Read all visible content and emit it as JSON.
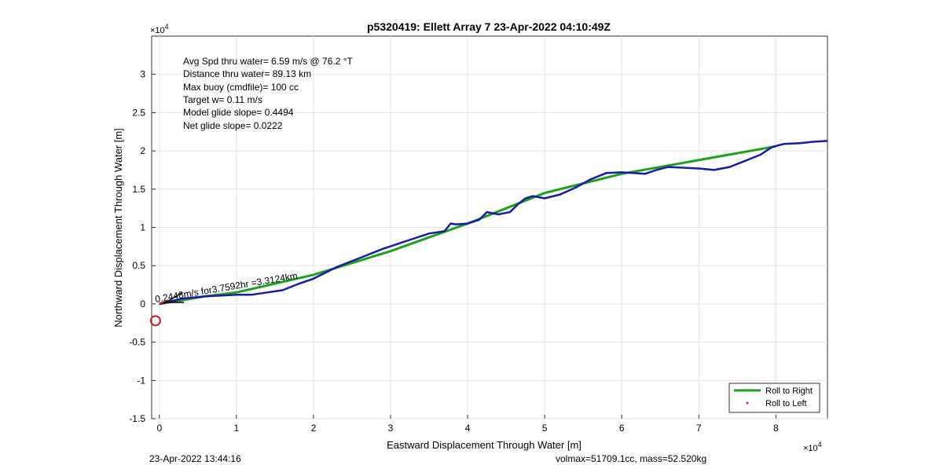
{
  "title": "p5320419: Ellett Array 7 23-Apr-2022 04:10:49Z",
  "footer_left": "23-Apr-2022 13:44:16",
  "footer_right": "volmax=51709.1cc, mass=52.520kg",
  "annotations": [
    "Avg Spd thru water=  6.59 m/s @  76.2 °T",
    "Distance thru water= 89.13 km",
    "Max buoy (cmdfile)= 100 cc",
    "Target w= 0.11 m/s",
    "Model glide slope= 0.4494",
    "Net glide slope= 0.0222"
  ],
  "current_label": "0.2448m/s for3.7592hr =3.3124km",
  "colors": {
    "roll_right": "#1aa31a",
    "track": "#1a1aa8",
    "roll_left": "#d62020",
    "start_marker": "#c81e1e",
    "current_arrow": "#000000"
  },
  "chart_data": {
    "type": "line",
    "title": "p5320419: Ellett Array 7 23-Apr-2022 04:10:49Z",
    "xlabel": "Eastward Displacement Through Water [m]",
    "ylabel": "Northward Displacement Through Water [m]",
    "x_exponent": "×10",
    "x_exponent_power": "4",
    "y_exponent": "×10",
    "y_exponent_power": "4",
    "xlim": [
      -0.1,
      8.67
    ],
    "ylim": [
      -1.5,
      3.5
    ],
    "x_ticks": [
      0,
      1,
      2,
      3,
      4,
      5,
      6,
      7,
      8
    ],
    "x_tick_labels": [
      "0",
      "1",
      "2",
      "3",
      "4",
      "5",
      "6",
      "7",
      "8"
    ],
    "y_ticks": [
      -1.5,
      -1,
      -0.5,
      0,
      0.5,
      1,
      1.5,
      2,
      2.5,
      3
    ],
    "y_tick_labels": [
      "-1.5",
      "-1",
      "-0.5",
      "0",
      "0.5",
      "1",
      "1.5",
      "2",
      "2.5",
      "3"
    ],
    "grid": true,
    "legend_position": "bottom-right",
    "legend": [
      "Roll to Right",
      "Roll to Left"
    ],
    "series": [
      {
        "name": "Roll to Right",
        "x": [
          0,
          0.6,
          1.0,
          2.0,
          3.0,
          4.0,
          5.0,
          6.0,
          7.0,
          8.0
        ],
        "y": [
          0,
          0.1,
          0.15,
          0.38,
          0.69,
          1.05,
          1.45,
          1.7,
          1.88,
          2.06
        ]
      },
      {
        "name": "Track",
        "x": [
          0,
          0.3,
          0.6,
          1.0,
          1.2,
          1.4,
          1.6,
          1.8,
          2.0,
          2.3,
          2.6,
          2.9,
          3.2,
          3.5,
          3.7,
          3.78,
          3.85,
          4.0,
          4.15,
          4.25,
          4.4,
          4.55,
          4.65,
          4.75,
          4.85,
          5.0,
          5.2,
          5.4,
          5.6,
          5.8,
          6.0,
          6.15,
          6.3,
          6.45,
          6.6,
          6.8,
          7.0,
          7.2,
          7.4,
          7.6,
          7.8,
          7.95,
          8.1,
          8.3,
          8.5,
          8.67
        ],
        "y": [
          0,
          0.07,
          0.1,
          0.12,
          0.12,
          0.15,
          0.18,
          0.26,
          0.33,
          0.48,
          0.6,
          0.72,
          0.82,
          0.92,
          0.95,
          1.05,
          1.04,
          1.05,
          1.1,
          1.2,
          1.17,
          1.2,
          1.3,
          1.38,
          1.41,
          1.38,
          1.43,
          1.52,
          1.63,
          1.71,
          1.72,
          1.71,
          1.7,
          1.75,
          1.79,
          1.78,
          1.77,
          1.75,
          1.79,
          1.87,
          1.95,
          2.05,
          2.09,
          2.1,
          2.12,
          2.13
        ]
      },
      {
        "name": "Roll to Left",
        "x": [
          0.02,
          0.05,
          0.08,
          0.12
        ],
        "y": [
          0.01,
          0.02,
          0.03,
          0.03
        ]
      }
    ],
    "start_marker": {
      "x": -0.05,
      "y": -0.22
    },
    "current_vector": {
      "x": [
        0.05,
        0.3
      ],
      "y": [
        0.0,
        0.15
      ]
    }
  }
}
